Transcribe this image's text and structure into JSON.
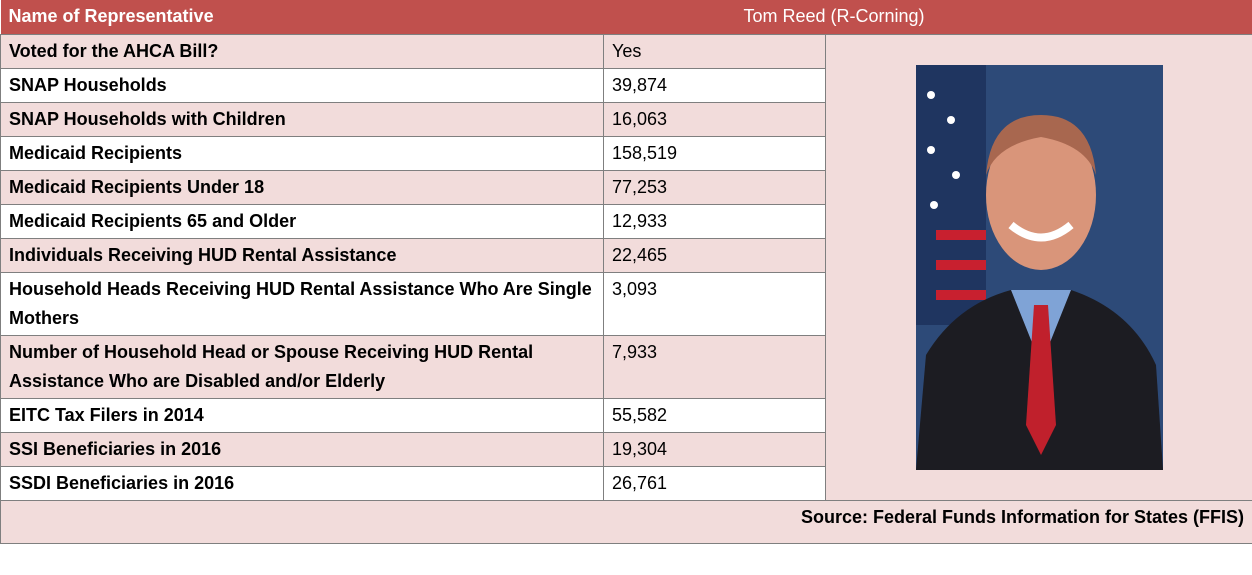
{
  "header": {
    "label": "Name of Representative",
    "value": "Tom Reed (R-Corning)"
  },
  "rows": [
    [
      "Voted for the AHCA Bill?",
      "Yes"
    ],
    [
      "SNAP Households",
      "39,874"
    ],
    [
      "SNAP Households with Children",
      "16,063"
    ],
    [
      "Medicaid Recipients",
      "158,519"
    ],
    [
      "Medicaid Recipients Under 18",
      "77,253"
    ],
    [
      "Medicaid Recipients 65 and Older",
      "12,933"
    ],
    [
      "Individuals Receiving HUD Rental Assistance",
      "22,465"
    ],
    [
      "Household Heads Receiving HUD Rental Assistance Who Are Single Mothers",
      "3,093"
    ],
    [
      "Number of Household Head or Spouse Receiving HUD Rental Assistance Who are Disabled and/or Elderly",
      "7,933"
    ],
    [
      "EITC Tax Filers in 2014",
      "55,582"
    ],
    [
      "SSI Beneficiaries in 2016",
      "19,304"
    ],
    [
      "SSDI Beneficiaries in 2016",
      "26,761"
    ]
  ],
  "source": "Source: Federal Funds Information for States (FFIS)"
}
